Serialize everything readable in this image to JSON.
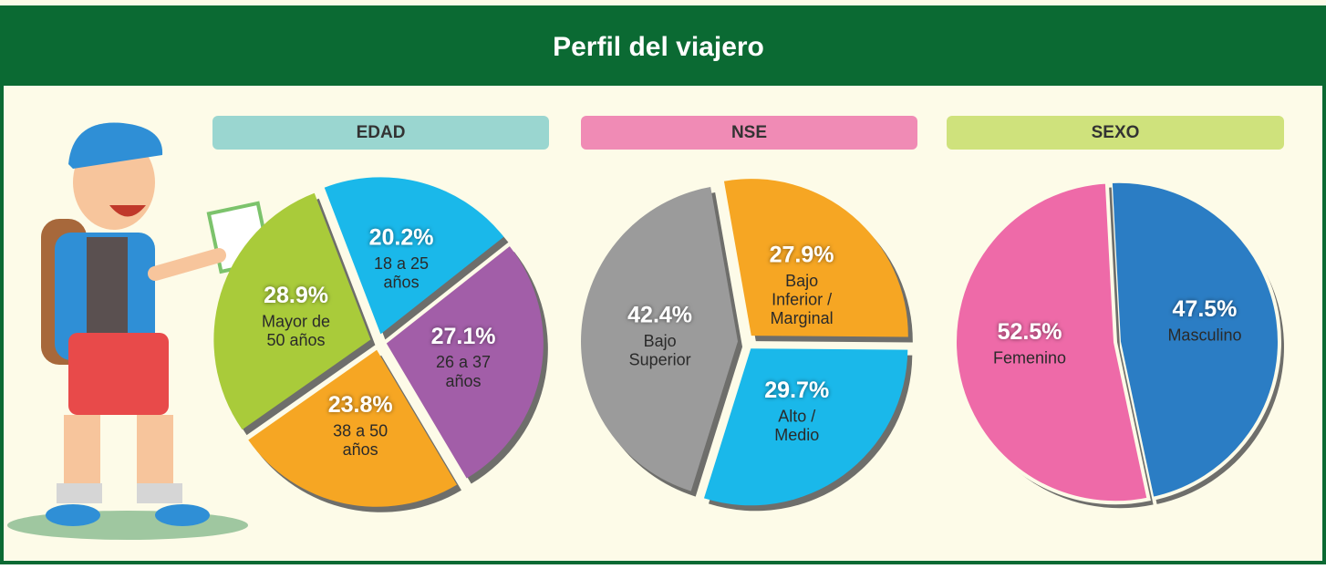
{
  "title": "Perfil del viajero",
  "chart_data": [
    {
      "type": "pie",
      "title": "EDAD",
      "categories": [
        "18 a 25 años",
        "26 a 37 años",
        "38 a 50 años",
        "Mayor de 50 años"
      ],
      "values": [
        20.2,
        27.1,
        23.8,
        28.9
      ],
      "value_labels": [
        "20.2%",
        "27.1%",
        "23.8%",
        "28.9%"
      ],
      "colors": [
        "#1ab8ea",
        "#a25ea8",
        "#f6a623",
        "#a9cb3a"
      ]
    },
    {
      "type": "pie",
      "title": "NSE",
      "categories": [
        "Bajo Inferior / Marginal",
        "Alto / Medio",
        "Bajo Superior"
      ],
      "values": [
        27.9,
        29.7,
        42.4
      ],
      "value_labels": [
        "27.9%",
        "29.7%",
        "42.4%"
      ],
      "colors": [
        "#f6a623",
        "#1ab8ea",
        "#9b9b9b"
      ]
    },
    {
      "type": "pie",
      "title": "SEXO",
      "categories": [
        "Masculino",
        "Femenino"
      ],
      "values": [
        47.5,
        52.5
      ],
      "value_labels": [
        "47.5%",
        "52.5%"
      ],
      "colors": [
        "#2b7dc4",
        "#ee6aa8"
      ]
    }
  ]
}
